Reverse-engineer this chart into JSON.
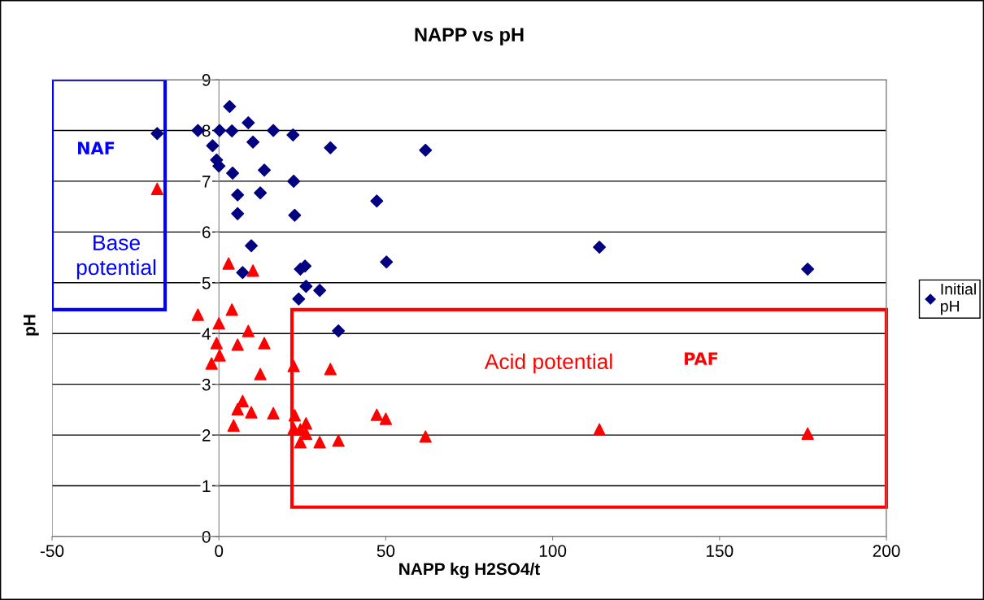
{
  "chart_data": {
    "type": "scatter",
    "title": "NAPP vs pH",
    "xlabel": "NAPP kg H2SO4/t",
    "ylabel": "pH",
    "xlim": [
      -50,
      200
    ],
    "xticks": [
      -50,
      0,
      50,
      100,
      150,
      200
    ],
    "ylim": [
      0,
      9
    ],
    "yticks": [
      0,
      1,
      2,
      3,
      4,
      5,
      6,
      7,
      8,
      9
    ],
    "grid": "y",
    "legend": "right",
    "series": [
      {
        "name": "Initial pH",
        "color": "#000080",
        "marker": "diamond",
        "x": [
          -18.5,
          -6.3,
          -1.9,
          -0.7,
          0,
          0.2,
          3.2,
          3.9,
          4.1,
          5.6,
          5.6,
          8.8,
          10.2,
          9.7,
          7.1,
          12.4,
          13.6,
          16.3,
          22.2,
          22.4,
          22.7,
          24.4,
          25.8,
          26.1,
          23.9,
          30.2,
          35.8,
          33.4,
          47.3,
          50.2,
          61.9,
          114.0,
          176.4
        ],
        "values": [
          7.94,
          8.0,
          7.7,
          7.42,
          7.3,
          8.0,
          8.47,
          7.99,
          7.16,
          6.73,
          6.36,
          8.15,
          7.77,
          5.73,
          5.2,
          6.77,
          7.22,
          8.0,
          7.91,
          7.0,
          6.33,
          5.27,
          5.33,
          4.93,
          4.68,
          4.85,
          4.05,
          7.66,
          6.61,
          5.41,
          7.61,
          5.7,
          5.27
        ]
      },
      {
        "color": "#ff0000",
        "marker": "triangle",
        "x": [
          -18.5,
          -6.3,
          2.9,
          10.2,
          3.9,
          0,
          8.8,
          -0.7,
          5.6,
          13.6,
          -2.2,
          0.2,
          12.4,
          22.4,
          33.4,
          7.1,
          5.6,
          9.7,
          16.3,
          22.7,
          4.4,
          22.4,
          24.4,
          26.1,
          26.1,
          24.4,
          30.2,
          35.8,
          47.3,
          50.0,
          61.9,
          114.0,
          176.4
        ],
        "values": [
          6.85,
          4.37,
          5.38,
          5.24,
          4.47,
          4.2,
          4.05,
          3.81,
          3.78,
          3.81,
          3.41,
          3.57,
          3.2,
          3.36,
          3.3,
          2.67,
          2.51,
          2.45,
          2.43,
          2.39,
          2.19,
          2.13,
          2.11,
          2.23,
          2.03,
          1.86,
          1.86,
          1.89,
          2.4,
          2.32,
          1.97,
          2.11,
          2.03
        ]
      }
    ],
    "annotations": [
      "NAF",
      "Base potential",
      "Acid potential",
      "PAF"
    ]
  }
}
